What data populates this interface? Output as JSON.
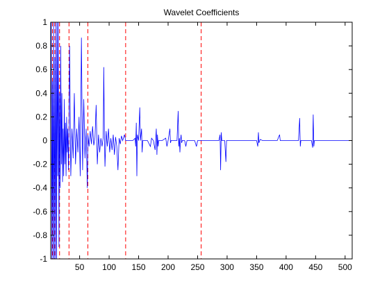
{
  "chart_data": {
    "type": "line",
    "title": "Wavelet Coefficients",
    "xlabel": "",
    "ylabel": "",
    "xlim": [
      1,
      512
    ],
    "ylim": [
      -1,
      1
    ],
    "grid": false,
    "x_ticks": [
      50,
      100,
      150,
      200,
      250,
      300,
      350,
      400,
      450,
      500
    ],
    "y_ticks": [
      -1,
      -0.8,
      -0.6,
      -0.4,
      -0.2,
      0,
      0.2,
      0.4,
      0.6,
      0.8,
      1
    ],
    "vertical_lines": {
      "style": "dashed",
      "color": "#ff0000",
      "x": [
        4,
        8,
        16,
        32,
        64,
        128,
        256
      ]
    },
    "series": [
      {
        "color": "#0000ff",
        "points": [
          [
            1,
            0
          ],
          [
            2,
            1.0
          ],
          [
            3,
            -1.0
          ],
          [
            4,
            0.5
          ],
          [
            5,
            -1.0
          ],
          [
            6,
            1.0
          ],
          [
            7,
            -1.0
          ],
          [
            8,
            0.7
          ],
          [
            9,
            -1.0
          ],
          [
            10,
            1.0
          ],
          [
            11,
            -1.0
          ],
          [
            12,
            1.0
          ],
          [
            13,
            -0.3
          ],
          [
            14,
            1.0
          ],
          [
            15,
            -0.9
          ],
          [
            16,
            0.4
          ],
          [
            17,
            -0.4
          ],
          [
            18,
            0.8
          ],
          [
            19,
            -0.2
          ],
          [
            20,
            0.4
          ],
          [
            21,
            -0.35
          ],
          [
            22,
            0.1
          ],
          [
            23,
            -0.3
          ],
          [
            24,
            0.35
          ],
          [
            25,
            -0.2
          ],
          [
            26,
            0.15
          ],
          [
            27,
            -0.3
          ],
          [
            28,
            0.2
          ],
          [
            29,
            -0.1
          ],
          [
            30,
            0.1
          ],
          [
            31,
            -0.25
          ],
          [
            32,
            0.05
          ],
          [
            33,
            0.8
          ],
          [
            35,
            -0.3
          ],
          [
            37,
            0.1
          ],
          [
            39,
            -0.15
          ],
          [
            41,
            0.4
          ],
          [
            43,
            -0.2
          ],
          [
            45,
            0.1
          ],
          [
            47,
            -0.1
          ],
          [
            49,
            0.2
          ],
          [
            51,
            -0.3
          ],
          [
            53,
            0.87
          ],
          [
            55,
            -0.25
          ],
          [
            57,
            0.35
          ],
          [
            59,
            -0.15
          ],
          [
            61,
            0.1
          ],
          [
            63,
            -0.4
          ],
          [
            64,
            0.05
          ],
          [
            66,
            -0.05
          ],
          [
            68,
            0.08
          ],
          [
            70,
            -0.03
          ],
          [
            72,
            0.12
          ],
          [
            74,
            -0.04
          ],
          [
            76,
            0.02
          ],
          [
            78,
            0.3
          ],
          [
            80,
            -0.2
          ],
          [
            82,
            0.05
          ],
          [
            84,
            -0.1
          ],
          [
            86,
            0.02
          ],
          [
            88,
            -0.05
          ],
          [
            90,
            0.03
          ],
          [
            91,
            0.62
          ],
          [
            92,
            0.05
          ],
          [
            93,
            -0.22
          ],
          [
            95,
            0.08
          ],
          [
            97,
            -0.05
          ],
          [
            99,
            0.1
          ],
          [
            101,
            -0.1
          ],
          [
            103,
            0.02
          ],
          [
            105,
            -0.08
          ],
          [
            107,
            0.05
          ],
          [
            109,
            -0.12
          ],
          [
            111,
            0.03
          ],
          [
            113,
            -0.05
          ],
          [
            115,
            -0.25
          ],
          [
            117,
            0.02
          ],
          [
            119,
            -0.03
          ],
          [
            121,
            0.04
          ],
          [
            123,
            0.0
          ],
          [
            126,
            0.05
          ],
          [
            128,
            0.0
          ],
          [
            135,
            0.0
          ],
          [
            140,
            0.0
          ],
          [
            144,
            0.02
          ],
          [
            145,
            -0.05
          ],
          [
            146,
            0.15
          ],
          [
            147,
            -0.3
          ],
          [
            148,
            0.05
          ],
          [
            150,
            0.0
          ],
          [
            152,
            0.28
          ],
          [
            153,
            0.0
          ],
          [
            155,
            0.1
          ],
          [
            156,
            -0.1
          ],
          [
            157,
            0.0
          ],
          [
            165,
            0.0
          ],
          [
            170,
            -0.05
          ],
          [
            172,
            0.02
          ],
          [
            175,
            0.0
          ],
          [
            178,
            -0.08
          ],
          [
            180,
            0.1
          ],
          [
            181,
            -0.12
          ],
          [
            182,
            0.05
          ],
          [
            183,
            -0.05
          ],
          [
            184,
            0.0
          ],
          [
            190,
            0.0
          ],
          [
            196,
            0.02
          ],
          [
            198,
            -0.05
          ],
          [
            200,
            0.0
          ],
          [
            203,
            0.1
          ],
          [
            204,
            -0.02
          ],
          [
            205,
            0.0
          ],
          [
            215,
            0.0
          ],
          [
            217,
            0.25
          ],
          [
            218,
            -0.05
          ],
          [
            219,
            0.02
          ],
          [
            220,
            -0.1
          ],
          [
            221,
            0.0
          ],
          [
            222,
            0.05
          ],
          [
            223,
            -0.02
          ],
          [
            224,
            0.0
          ],
          [
            228,
            0.0
          ],
          [
            230,
            -0.05
          ],
          [
            232,
            0.0
          ],
          [
            245,
            0.0
          ],
          [
            248,
            -0.05
          ],
          [
            250,
            0.0
          ],
          [
            256,
            0.0
          ],
          [
            280,
            0.0
          ],
          [
            286,
            0.0
          ],
          [
            288,
            0.05
          ],
          [
            289,
            -0.25
          ],
          [
            290,
            0.07
          ],
          [
            291,
            0.0
          ],
          [
            296,
            0.0
          ],
          [
            298,
            -0.18
          ],
          [
            299,
            0.0
          ],
          [
            320,
            0.0
          ],
          [
            345,
            0.0
          ],
          [
            350,
            0.0
          ],
          [
            352,
            -0.05
          ],
          [
            353,
            0.07
          ],
          [
            354,
            -0.02
          ],
          [
            356,
            0.01
          ],
          [
            360,
            0.0
          ],
          [
            375,
            0.0
          ],
          [
            385,
            0.0
          ],
          [
            389,
            0.05
          ],
          [
            390,
            0.0
          ],
          [
            400,
            0.0
          ],
          [
            415,
            0.0
          ],
          [
            421,
            0.0
          ],
          [
            423,
            0.19
          ],
          [
            424,
            -0.05
          ],
          [
            425,
            0.0
          ],
          [
            430,
            0.0
          ],
          [
            443,
            0.0
          ],
          [
            445,
            -0.06
          ],
          [
            446,
            0.22
          ],
          [
            447,
            -0.05
          ],
          [
            448,
            0.0
          ],
          [
            460,
            0.0
          ],
          [
            512,
            0.0
          ]
        ]
      }
    ]
  }
}
